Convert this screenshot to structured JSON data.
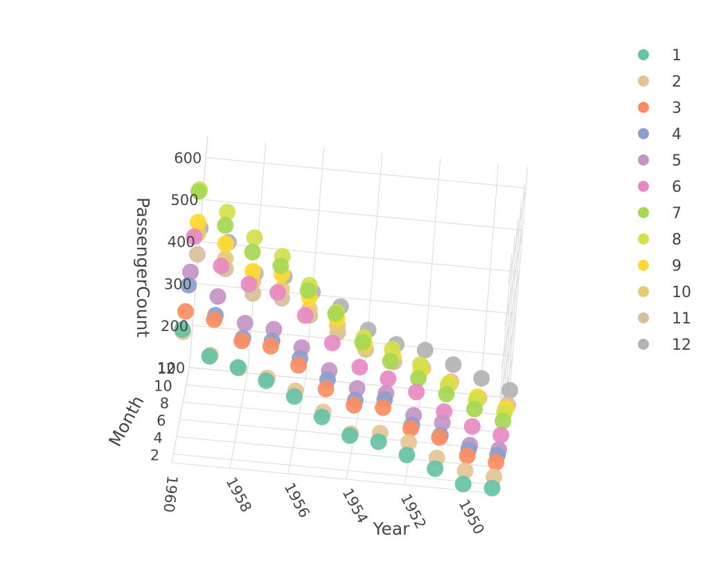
{
  "chart_data": {
    "type": "scatter",
    "subtype": "3d-scatter",
    "x_axis": {
      "title": "Year",
      "ticks": [
        "1950",
        "1952",
        "1954",
        "1956",
        "1958",
        "1960"
      ],
      "range": [
        1949,
        1960
      ]
    },
    "y_axis": {
      "title": "Month",
      "ticks": [
        "2",
        "4",
        "6",
        "8",
        "10",
        "12"
      ],
      "range": [
        1,
        12
      ]
    },
    "z_axis": {
      "title": "PassengerCount",
      "ticks": [
        "100",
        "200",
        "300",
        "400",
        "500",
        "600"
      ],
      "range": [
        100,
        650
      ]
    },
    "grid": true,
    "legend_position": "top-right",
    "series": [
      {
        "name": "1",
        "color": "#66c2a5",
        "values": [
          112,
          115,
          145,
          171,
          196,
          204,
          242,
          284,
          315,
          340,
          360,
          417
        ]
      },
      {
        "name": "2",
        "color": "#e5c494",
        "values": [
          118,
          126,
          150,
          180,
          196,
          188,
          233,
          277,
          301,
          318,
          342,
          391
        ]
      },
      {
        "name": "3",
        "color": "#fc8d62",
        "values": [
          132,
          141,
          178,
          193,
          236,
          235,
          267,
          317,
          356,
          362,
          406,
          419
        ]
      },
      {
        "name": "4",
        "color": "#8da0cb",
        "values": [
          129,
          135,
          163,
          181,
          235,
          227,
          269,
          313,
          348,
          348,
          396,
          461
        ]
      },
      {
        "name": "5",
        "color": "#c594c5",
        "values": [
          121,
          125,
          172,
          183,
          229,
          234,
          270,
          318,
          355,
          363,
          420,
          472
        ]
      },
      {
        "name": "6",
        "color": "#e78ac3",
        "values": [
          135,
          149,
          178,
          218,
          243,
          264,
          315,
          374,
          422,
          435,
          472,
          535
        ]
      },
      {
        "name": "7",
        "color": "#a6d854",
        "values": [
          148,
          170,
          199,
          230,
          264,
          302,
          364,
          413,
          465,
          491,
          548,
          622
        ]
      },
      {
        "name": "8",
        "color": "#d4e04c",
        "values": [
          148,
          170,
          199,
          242,
          272,
          293,
          347,
          405,
          467,
          505,
          559,
          606
        ]
      },
      {
        "name": "9",
        "color": "#ffd92f",
        "values": [
          136,
          158,
          184,
          209,
          237,
          259,
          312,
          355,
          404,
          404,
          463,
          508
        ]
      },
      {
        "name": "10",
        "color": "#e8c97a",
        "values": [
          119,
          133,
          162,
          191,
          211,
          229,
          274,
          306,
          347,
          359,
          407,
          461
        ]
      },
      {
        "name": "11",
        "color": "#d6bf9c",
        "values": [
          104,
          114,
          146,
          172,
          180,
          203,
          237,
          271,
          305,
          310,
          362,
          390
        ]
      },
      {
        "name": "12",
        "color": "#b3b3b3",
        "values": [
          118,
          140,
          166,
          194,
          201,
          229,
          278,
          306,
          336,
          337,
          405,
          432
        ]
      }
    ],
    "years": [
      1949,
      1950,
      1951,
      1952,
      1953,
      1954,
      1955,
      1956,
      1957,
      1958,
      1959,
      1960
    ]
  }
}
